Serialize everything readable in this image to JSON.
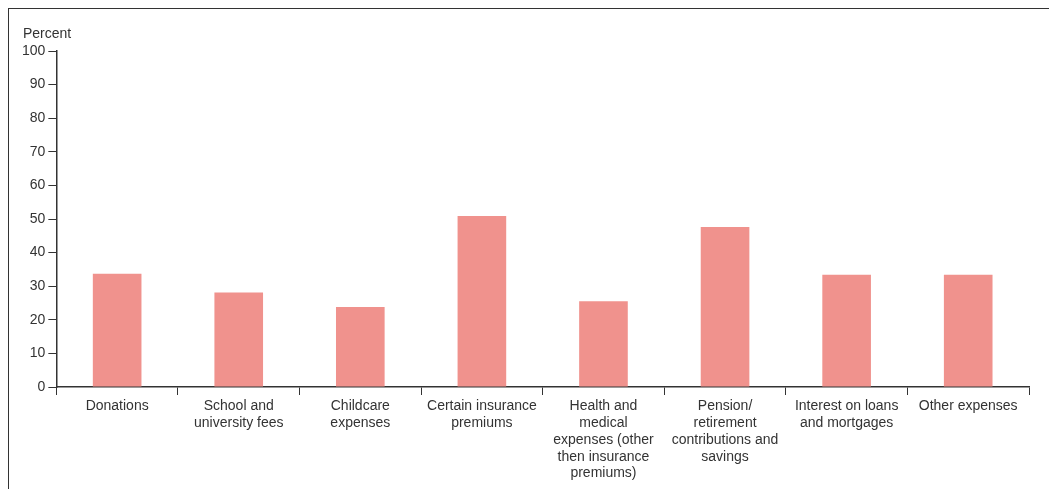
{
  "chart_data": {
    "type": "bar",
    "ylabel": "Percent",
    "categories": [
      "Donations",
      "School and university fees",
      "Childcare expenses",
      "Certain insurance premiums",
      "Health and medical expenses (other then insurance premiums)",
      "Pension/ retirement contributions and savings",
      "Interest on loans and mortgages",
      "Other expenses"
    ],
    "values": [
      33.7,
      28.1,
      23.8,
      50.9,
      25.5,
      47.6,
      33.4,
      33.4
    ],
    "color": "#f0928d",
    "ylim": [
      0,
      100
    ],
    "yticks": [
      0,
      10,
      20,
      30,
      40,
      50,
      60,
      70,
      80,
      90,
      100
    ],
    "grid": false,
    "legend": false
  }
}
